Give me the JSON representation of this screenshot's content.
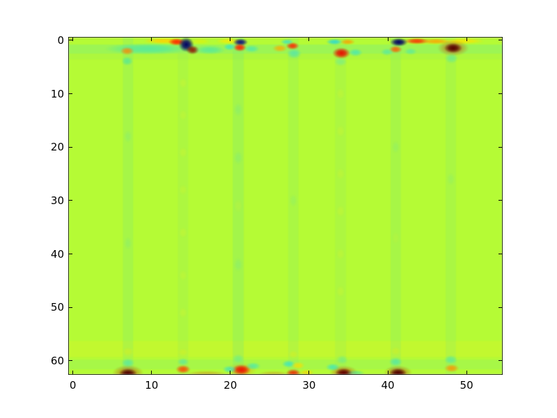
{
  "figure": {
    "background": "#ffffff",
    "border_color": "#000000",
    "tick_color": "#000000",
    "label_color": "#000000"
  },
  "chart_data": {
    "type": "heatmap",
    "colormap": "jet",
    "title": "",
    "xlabel": "",
    "ylabel": "",
    "grid_cols": 55,
    "grid_rows": 63,
    "xlim": [
      -0.5,
      54.5
    ],
    "ylim": [
      62.5,
      -0.5
    ],
    "x_ticks": [
      0,
      10,
      20,
      30,
      40,
      50
    ],
    "y_ticks": [
      0,
      10,
      20,
      30,
      40,
      50,
      60
    ],
    "legend": "none",
    "grid": "off",
    "background_color": "#b5fb35",
    "bands": [
      {
        "y0": 0.8,
        "y1": 2.5,
        "color": "#5ee6a6",
        "alpha": 0.28
      },
      {
        "y0": 2.5,
        "y1": 3.6,
        "color": "#9df04e",
        "alpha": 0.3
      },
      {
        "y0": 56.3,
        "y1": 59.3,
        "color": "#d6f628",
        "alpha": 0.4
      },
      {
        "y0": 59.8,
        "y1": 61.6,
        "color": "#5ee6a6",
        "alpha": 0.16
      }
    ],
    "stripes": [
      {
        "x": 7,
        "width": 1.3,
        "color": "#84ea72",
        "alpha": 0.3
      },
      {
        "x": 14,
        "width": 1.3,
        "color": "#9cee5a",
        "alpha": 0.3
      },
      {
        "x": 21,
        "width": 1.4,
        "color": "#7ce87c",
        "alpha": 0.3
      },
      {
        "x": 28,
        "width": 1.3,
        "color": "#8aec6e",
        "alpha": 0.25
      },
      {
        "x": 34,
        "width": 1.4,
        "color": "#9cee5a",
        "alpha": 0.3
      },
      {
        "x": 41,
        "width": 1.3,
        "color": "#84ea72",
        "alpha": 0.28
      },
      {
        "x": 48,
        "width": 1.3,
        "color": "#8aec6e",
        "alpha": 0.25
      }
    ],
    "dashes": [
      {
        "x": 14,
        "y": 8,
        "rx": 0.55,
        "ry": 1.0,
        "color": "#d6f42c",
        "alpha": 0.35
      },
      {
        "x": 14,
        "y": 14,
        "rx": 0.55,
        "ry": 1.0,
        "color": "#d6f42c",
        "alpha": 0.3
      },
      {
        "x": 14,
        "y": 21,
        "rx": 0.55,
        "ry": 1.0,
        "color": "#d6f42c",
        "alpha": 0.35
      },
      {
        "x": 14,
        "y": 28,
        "rx": 0.55,
        "ry": 1.0,
        "color": "#d6f42c",
        "alpha": 0.3
      },
      {
        "x": 14,
        "y": 36,
        "rx": 0.55,
        "ry": 1.0,
        "color": "#d6f42c",
        "alpha": 0.35
      },
      {
        "x": 14,
        "y": 44,
        "rx": 0.55,
        "ry": 1.0,
        "color": "#d6f42c",
        "alpha": 0.3
      },
      {
        "x": 14,
        "y": 51,
        "rx": 0.55,
        "ry": 1.0,
        "color": "#d6f42c",
        "alpha": 0.35
      },
      {
        "x": 34,
        "y": 10,
        "rx": 0.55,
        "ry": 1.1,
        "color": "#d6f42c",
        "alpha": 0.3
      },
      {
        "x": 34,
        "y": 17,
        "rx": 0.55,
        "ry": 1.1,
        "color": "#d6f42c",
        "alpha": 0.33
      },
      {
        "x": 34,
        "y": 25,
        "rx": 0.55,
        "ry": 1.1,
        "color": "#d6f42c",
        "alpha": 0.3
      },
      {
        "x": 34,
        "y": 32,
        "rx": 0.55,
        "ry": 1.1,
        "color": "#d6f42c",
        "alpha": 0.33
      },
      {
        "x": 34,
        "y": 40,
        "rx": 0.55,
        "ry": 1.1,
        "color": "#d6f42c",
        "alpha": 0.3
      },
      {
        "x": 34,
        "y": 47,
        "rx": 0.55,
        "ry": 1.1,
        "color": "#d6f42c",
        "alpha": 0.33
      },
      {
        "x": 21,
        "y": 13,
        "rx": 0.55,
        "ry": 1.3,
        "color": "#6ee69a",
        "alpha": 0.3
      },
      {
        "x": 21,
        "y": 22,
        "rx": 0.55,
        "ry": 1.3,
        "color": "#6ee69a",
        "alpha": 0.28
      },
      {
        "x": 21,
        "y": 31,
        "rx": 0.55,
        "ry": 1.3,
        "color": "#c8f238",
        "alpha": 0.3
      },
      {
        "x": 21,
        "y": 42,
        "rx": 0.55,
        "ry": 1.3,
        "color": "#6ee69a",
        "alpha": 0.28
      },
      {
        "x": 7,
        "y": 18,
        "rx": 0.5,
        "ry": 1.2,
        "color": "#6ee69a",
        "alpha": 0.25
      },
      {
        "x": 7,
        "y": 38,
        "rx": 0.5,
        "ry": 1.2,
        "color": "#6ee69a",
        "alpha": 0.25
      },
      {
        "x": 41,
        "y": 20,
        "rx": 0.5,
        "ry": 1.2,
        "color": "#6ee69a",
        "alpha": 0.22
      },
      {
        "x": 41,
        "y": 37,
        "rx": 0.5,
        "ry": 1.2,
        "color": "#c8f238",
        "alpha": 0.25
      },
      {
        "x": 48,
        "y": 26,
        "rx": 0.5,
        "ry": 1.2,
        "color": "#6ee69a",
        "alpha": 0.2
      },
      {
        "x": 28,
        "y": 30,
        "rx": 0.5,
        "ry": 1.2,
        "color": "#6ee69a",
        "alpha": 0.2
      }
    ],
    "blobs": [
      {
        "x": 9.5,
        "y": 1.6,
        "rx": 5.5,
        "ry": 1.1,
        "color": "#2fe4c4",
        "alpha": 0.6
      },
      {
        "x": 6.9,
        "y": 2.0,
        "rx": 0.9,
        "ry": 0.75,
        "color": "#ff8800",
        "alpha": 0.85
      },
      {
        "x": 6.9,
        "y": 3.9,
        "rx": 0.75,
        "ry": 0.85,
        "color": "#2fe0c0",
        "alpha": 0.55
      },
      {
        "x": 11.6,
        "y": 0.1,
        "rx": 2.6,
        "ry": 0.6,
        "color": "#ffd400",
        "alpha": 0.9
      },
      {
        "x": 13.2,
        "y": 0.3,
        "rx": 1.1,
        "ry": 0.7,
        "color": "#ff2d00",
        "alpha": 1.0
      },
      {
        "x": 14.4,
        "y": 0.8,
        "rx": 1.0,
        "ry": 1.4,
        "color": "#000066",
        "alpha": 1.0
      },
      {
        "x": 15.2,
        "y": 1.8,
        "rx": 0.85,
        "ry": 0.85,
        "color": "#8b0000",
        "alpha": 0.85
      },
      {
        "x": 17.4,
        "y": 1.8,
        "rx": 2.0,
        "ry": 0.85,
        "color": "#2fe4c4",
        "alpha": 0.55
      },
      {
        "x": 16.2,
        "y": 0.2,
        "rx": 1.3,
        "ry": 0.55,
        "color": "#e8f000",
        "alpha": 0.55
      },
      {
        "x": 19.9,
        "y": 0.15,
        "rx": 1.7,
        "ry": 0.55,
        "color": "#ffe800",
        "alpha": 0.75
      },
      {
        "x": 21.3,
        "y": 0.35,
        "rx": 0.95,
        "ry": 0.7,
        "color": "#000080",
        "alpha": 0.9
      },
      {
        "x": 21.2,
        "y": 1.35,
        "rx": 0.85,
        "ry": 0.75,
        "color": "#ff2200",
        "alpha": 0.95
      },
      {
        "x": 19.9,
        "y": 1.25,
        "rx": 0.8,
        "ry": 0.65,
        "color": "#2fe4d0",
        "alpha": 0.75
      },
      {
        "x": 22.7,
        "y": 1.6,
        "rx": 1.0,
        "ry": 0.7,
        "color": "#2fe4d0",
        "alpha": 0.6
      },
      {
        "x": 26.3,
        "y": 1.5,
        "rx": 0.95,
        "ry": 0.7,
        "color": "#ffaa00",
        "alpha": 0.8
      },
      {
        "x": 27.9,
        "y": 1.05,
        "rx": 0.85,
        "ry": 0.7,
        "color": "#ff2200",
        "alpha": 0.9
      },
      {
        "x": 27.2,
        "y": 0.3,
        "rx": 0.85,
        "ry": 0.55,
        "color": "#2fe0d8",
        "alpha": 0.75
      },
      {
        "x": 28.1,
        "y": 2.5,
        "rx": 0.95,
        "ry": 0.95,
        "color": "#2fe0d8",
        "alpha": 0.55
      },
      {
        "x": 33.2,
        "y": 0.3,
        "rx": 1.05,
        "ry": 0.6,
        "color": "#20d8e0",
        "alpha": 0.85
      },
      {
        "x": 34.9,
        "y": 0.3,
        "rx": 0.95,
        "ry": 0.55,
        "color": "#ff9900",
        "alpha": 0.8
      },
      {
        "x": 34.1,
        "y": 2.4,
        "rx": 1.15,
        "ry": 1.05,
        "color": "#e81000",
        "alpha": 1.0
      },
      {
        "x": 35.9,
        "y": 2.3,
        "rx": 0.9,
        "ry": 0.75,
        "color": "#2fe4d0",
        "alpha": 0.65
      },
      {
        "x": 34.0,
        "y": 4.0,
        "rx": 0.85,
        "ry": 0.85,
        "color": "#4fe8c4",
        "alpha": 0.4
      },
      {
        "x": 41.4,
        "y": 0.35,
        "rx": 1.15,
        "ry": 0.8,
        "color": "#000066",
        "alpha": 1.0
      },
      {
        "x": 43.7,
        "y": 0.15,
        "rx": 1.6,
        "ry": 0.6,
        "color": "#ff2a00",
        "alpha": 0.9
      },
      {
        "x": 46.1,
        "y": 0.2,
        "rx": 1.9,
        "ry": 0.55,
        "color": "#ffa200",
        "alpha": 0.85
      },
      {
        "x": 49.6,
        "y": 0.15,
        "rx": 2.7,
        "ry": 0.55,
        "color": "#ffe400",
        "alpha": 0.8
      },
      {
        "x": 41.0,
        "y": 1.7,
        "rx": 0.85,
        "ry": 0.7,
        "color": "#ff5500",
        "alpha": 0.85
      },
      {
        "x": 39.9,
        "y": 2.2,
        "rx": 0.8,
        "ry": 0.7,
        "color": "#38e4c8",
        "alpha": 0.55
      },
      {
        "x": 42.9,
        "y": 2.1,
        "rx": 0.8,
        "ry": 0.65,
        "color": "#38e4c8",
        "alpha": 0.5
      },
      {
        "x": 48.3,
        "y": 1.45,
        "rx": 2.0,
        "ry": 1.5,
        "color": "#cc2200",
        "alpha": 0.5
      },
      {
        "x": 48.3,
        "y": 1.45,
        "rx": 1.15,
        "ry": 0.95,
        "color": "#550000",
        "alpha": 1.0
      },
      {
        "x": 48.1,
        "y": 3.4,
        "rx": 0.85,
        "ry": 0.95,
        "color": "#3fe4c4",
        "alpha": 0.45
      },
      {
        "x": 7.0,
        "y": 62.3,
        "rx": 2.0,
        "ry": 1.5,
        "color": "#b81c00",
        "alpha": 0.5
      },
      {
        "x": 7.0,
        "y": 62.4,
        "rx": 1.15,
        "ry": 0.95,
        "color": "#500000",
        "alpha": 1.0
      },
      {
        "x": 7.0,
        "y": 60.4,
        "rx": 0.85,
        "ry": 0.85,
        "color": "#38e4c8",
        "alpha": 0.55
      },
      {
        "x": 7.0,
        "y": 58.3,
        "rx": 0.75,
        "ry": 0.85,
        "color": "#d8ee20",
        "alpha": 0.5
      },
      {
        "x": 14.0,
        "y": 61.6,
        "rx": 0.95,
        "ry": 0.8,
        "color": "#ff4400",
        "alpha": 0.9
      },
      {
        "x": 14.0,
        "y": 60.2,
        "rx": 0.75,
        "ry": 0.7,
        "color": "#38e4c8",
        "alpha": 0.5
      },
      {
        "x": 14.0,
        "y": 58.4,
        "rx": 0.7,
        "ry": 0.7,
        "color": "#d8ee20",
        "alpha": 0.45
      },
      {
        "x": 17.0,
        "y": 62.4,
        "rx": 2.6,
        "ry": 0.55,
        "color": "#d86818",
        "alpha": 0.4
      },
      {
        "x": 21.4,
        "y": 61.8,
        "rx": 2.0,
        "ry": 1.4,
        "color": "#ff8800",
        "alpha": 0.4
      },
      {
        "x": 21.4,
        "y": 61.7,
        "rx": 1.2,
        "ry": 1.0,
        "color": "#ee1500",
        "alpha": 1.0
      },
      {
        "x": 19.9,
        "y": 61.6,
        "rx": 0.9,
        "ry": 0.7,
        "color": "#2fe4d0",
        "alpha": 0.7
      },
      {
        "x": 22.9,
        "y": 61.0,
        "rx": 0.95,
        "ry": 0.7,
        "color": "#2fe4d0",
        "alpha": 0.6
      },
      {
        "x": 21.0,
        "y": 59.6,
        "rx": 0.75,
        "ry": 0.85,
        "color": "#48e8b8",
        "alpha": 0.4
      },
      {
        "x": 25.5,
        "y": 62.4,
        "rx": 2.0,
        "ry": 0.5,
        "color": "#d86818",
        "alpha": 0.35
      },
      {
        "x": 27.4,
        "y": 60.6,
        "rx": 0.85,
        "ry": 0.7,
        "color": "#2fe4d0",
        "alpha": 0.75
      },
      {
        "x": 28.6,
        "y": 60.9,
        "rx": 0.85,
        "ry": 0.7,
        "color": "#ffdd00",
        "alpha": 0.75
      },
      {
        "x": 28.0,
        "y": 62.3,
        "rx": 0.95,
        "ry": 0.75,
        "color": "#ee2200",
        "alpha": 0.9
      },
      {
        "x": 29.7,
        "y": 62.2,
        "rx": 0.95,
        "ry": 0.55,
        "color": "#ffce00",
        "alpha": 0.65
      },
      {
        "x": 28.0,
        "y": 58.8,
        "rx": 0.65,
        "ry": 0.75,
        "color": "#d8ee20",
        "alpha": 0.5
      },
      {
        "x": 34.4,
        "y": 62.2,
        "rx": 1.8,
        "ry": 1.3,
        "color": "#cc2200",
        "alpha": 0.5
      },
      {
        "x": 34.4,
        "y": 62.3,
        "rx": 1.1,
        "ry": 0.9,
        "color": "#600000",
        "alpha": 1.0
      },
      {
        "x": 33.0,
        "y": 61.2,
        "rx": 0.9,
        "ry": 0.7,
        "color": "#2fe4d0",
        "alpha": 0.7
      },
      {
        "x": 34.2,
        "y": 59.8,
        "rx": 0.75,
        "ry": 0.85,
        "color": "#48e8b8",
        "alpha": 0.4
      },
      {
        "x": 35.9,
        "y": 62.3,
        "rx": 1.2,
        "ry": 0.6,
        "color": "#20d4cc",
        "alpha": 0.45
      },
      {
        "x": 41.3,
        "y": 62.2,
        "rx": 1.8,
        "ry": 1.3,
        "color": "#b81c00",
        "alpha": 0.5
      },
      {
        "x": 41.3,
        "y": 62.3,
        "rx": 1.1,
        "ry": 0.9,
        "color": "#500000",
        "alpha": 1.0
      },
      {
        "x": 41.0,
        "y": 60.2,
        "rx": 0.85,
        "ry": 0.85,
        "color": "#38e4c8",
        "alpha": 0.6
      },
      {
        "x": 41.0,
        "y": 58.2,
        "rx": 0.7,
        "ry": 0.8,
        "color": "#d8ee20",
        "alpha": 0.45
      },
      {
        "x": 48.1,
        "y": 61.4,
        "rx": 0.95,
        "ry": 0.75,
        "color": "#ff9100",
        "alpha": 0.85
      },
      {
        "x": 48.0,
        "y": 59.8,
        "rx": 0.85,
        "ry": 0.85,
        "color": "#38e4c8",
        "alpha": 0.55
      }
    ]
  }
}
